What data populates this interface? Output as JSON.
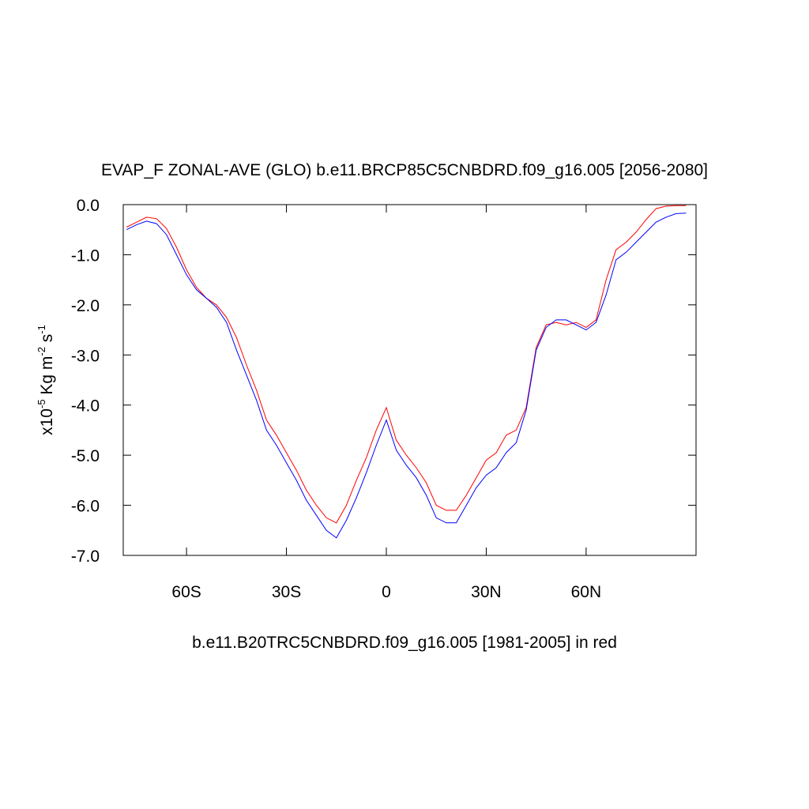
{
  "chart_data": {
    "type": "line",
    "title": "EVAP_F ZONAL-AVE (GLO) b.e11.BRCP85C5CNBDRD.f09_g16.005 [2056-2080]",
    "x_label": "b.e11.B20TRC5CNBDRD.f09_g16.005 [1981-2005] in red",
    "y_label": [
      {
        "text": "x10"
      },
      {
        "text": "-5",
        "sup": true
      },
      {
        "text": " Kg m"
      },
      {
        "text": "-2",
        "sup": true
      },
      {
        "text": " s"
      },
      {
        "text": "-1",
        "sup": true
      }
    ],
    "x": [
      -78,
      -75,
      -72,
      -69,
      -66,
      -63,
      -60,
      -57,
      -54,
      -51,
      -48,
      -45,
      -42,
      -39,
      -36,
      -33,
      -30,
      -27,
      -24,
      -21,
      -18,
      -15,
      -12,
      -9,
      -6,
      -3,
      0,
      3,
      6,
      9,
      12,
      15,
      18,
      21,
      24,
      27,
      30,
      33,
      36,
      39,
      42,
      45,
      48,
      51,
      54,
      57,
      60,
      63,
      66,
      69,
      72,
      75,
      78,
      81,
      84,
      87,
      90
    ],
    "series": [
      {
        "color": "#ff0000",
        "values": [
          -0.45,
          -0.35,
          -0.25,
          -0.28,
          -0.48,
          -0.85,
          -1.3,
          -1.65,
          -1.87,
          -2.0,
          -2.25,
          -2.65,
          -3.2,
          -3.7,
          -4.3,
          -4.6,
          -4.95,
          -5.3,
          -5.7,
          -6.0,
          -6.25,
          -6.35,
          -6.0,
          -5.5,
          -5.05,
          -4.5,
          -4.05,
          -4.7,
          -5.0,
          -5.25,
          -5.55,
          -6.0,
          -6.1,
          -6.1,
          -5.8,
          -5.45,
          -5.1,
          -4.95,
          -4.6,
          -4.5,
          -4.05,
          -2.85,
          -2.4,
          -2.35,
          -2.4,
          -2.35,
          -2.45,
          -2.3,
          -1.5,
          -0.9,
          -0.75,
          -0.55,
          -0.3,
          -0.08,
          -0.03,
          -0.02,
          -0.02
        ]
      },
      {
        "color": "#0000ff",
        "values": [
          -0.5,
          -0.4,
          -0.33,
          -0.38,
          -0.6,
          -1.0,
          -1.4,
          -1.7,
          -1.87,
          -2.05,
          -2.35,
          -2.9,
          -3.4,
          -3.9,
          -4.5,
          -4.8,
          -5.15,
          -5.5,
          -5.9,
          -6.2,
          -6.5,
          -6.65,
          -6.3,
          -5.85,
          -5.35,
          -4.8,
          -4.3,
          -4.9,
          -5.2,
          -5.45,
          -5.8,
          -6.25,
          -6.35,
          -6.35,
          -6.0,
          -5.65,
          -5.4,
          -5.25,
          -4.95,
          -4.75,
          -4.1,
          -2.9,
          -2.45,
          -2.3,
          -2.3,
          -2.4,
          -2.5,
          -2.35,
          -1.8,
          -1.1,
          -0.95,
          -0.75,
          -0.55,
          -0.35,
          -0.25,
          -0.18,
          -0.17
        ]
      }
    ],
    "xlim": [
      -79,
      93
    ],
    "ylim": [
      -7,
      0
    ],
    "xticks": [
      {
        "value": -60,
        "label": "60S"
      },
      {
        "value": -30,
        "label": "30S"
      },
      0,
      {
        "value": 30,
        "label": "30N"
      },
      {
        "value": 60,
        "label": "60N"
      }
    ],
    "yticks": [
      {
        "value": 0,
        "label": "0.0"
      },
      {
        "value": -1,
        "label": "-1.0"
      },
      {
        "value": -2,
        "label": "-2.0"
      },
      {
        "value": -3,
        "label": "-3.0"
      },
      {
        "value": -4,
        "label": "-4.0"
      },
      {
        "value": -5,
        "label": "-5.0"
      },
      {
        "value": -6,
        "label": "-6.0"
      },
      {
        "value": -7,
        "label": "-7.0"
      }
    ]
  }
}
